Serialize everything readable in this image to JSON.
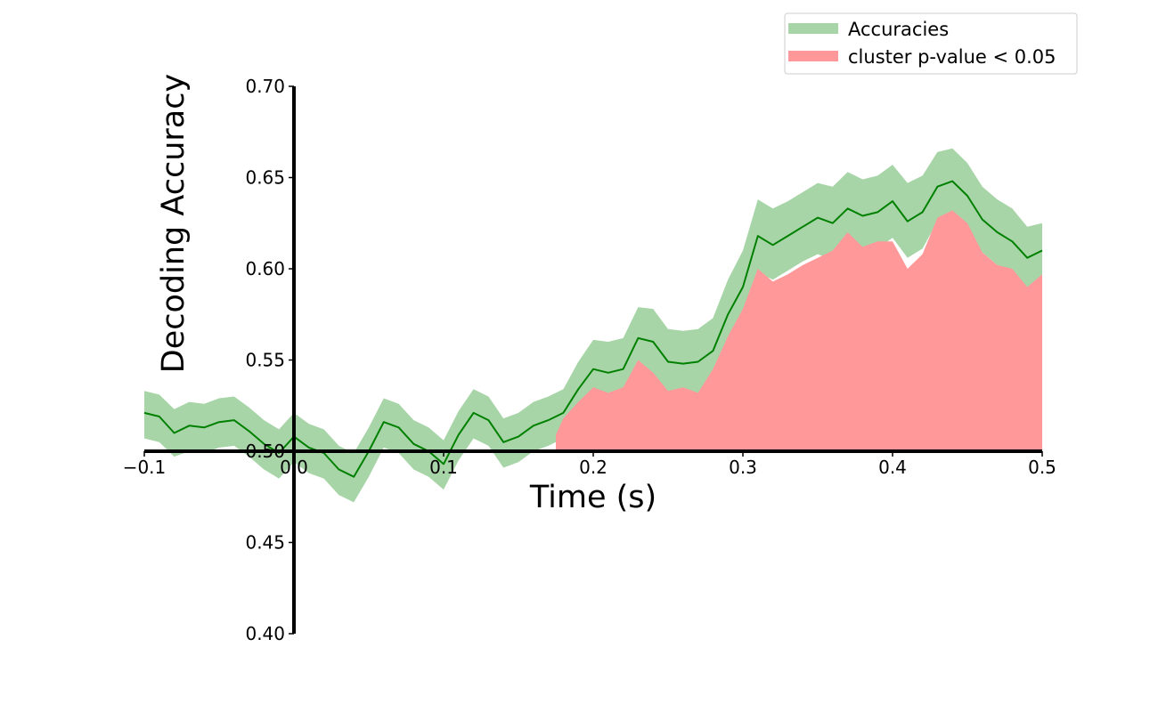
{
  "chart_data": {
    "type": "line",
    "title": "",
    "xlabel": "Time (s)",
    "ylabel": "Decoding Accuracy",
    "xlim": [
      -0.1,
      0.5
    ],
    "ylim": [
      0.4,
      0.7
    ],
    "x_ticks": [
      -0.1,
      0.0,
      0.1,
      0.2,
      0.3,
      0.4,
      0.5
    ],
    "x_tick_labels": [
      "−0.1",
      "0.0",
      "0.1",
      "0.2",
      "0.3",
      "0.4",
      "0.5"
    ],
    "y_ticks": [
      0.4,
      0.45,
      0.5,
      0.55,
      0.6,
      0.65,
      0.7
    ],
    "y_tick_labels": [
      "0.40",
      "0.45",
      "0.50",
      "0.55",
      "0.60",
      "0.65",
      "0.70"
    ],
    "spines_through_origin": true,
    "grid": false,
    "legend_position": "top-right",
    "series": [
      {
        "name": "Accuracies",
        "color": "#008000",
        "band_color": "#a8d5a8",
        "x": [
          -0.1,
          -0.09,
          -0.08,
          -0.07,
          -0.06,
          -0.05,
          -0.04,
          -0.03,
          -0.02,
          -0.01,
          0.0,
          0.01,
          0.02,
          0.03,
          0.04,
          0.05,
          0.06,
          0.07,
          0.08,
          0.09,
          0.1,
          0.11,
          0.12,
          0.13,
          0.14,
          0.15,
          0.16,
          0.17,
          0.18,
          0.19,
          0.2,
          0.21,
          0.22,
          0.23,
          0.24,
          0.25,
          0.26,
          0.27,
          0.28,
          0.29,
          0.3,
          0.31,
          0.32,
          0.33,
          0.34,
          0.35,
          0.36,
          0.37,
          0.38,
          0.39,
          0.4,
          0.41,
          0.42,
          0.43,
          0.44,
          0.45,
          0.46,
          0.47,
          0.48,
          0.49,
          0.5
        ],
        "mean": [
          0.521,
          0.519,
          0.51,
          0.514,
          0.513,
          0.516,
          0.517,
          0.511,
          0.504,
          0.499,
          0.508,
          0.502,
          0.499,
          0.49,
          0.486,
          0.5,
          0.516,
          0.513,
          0.504,
          0.5,
          0.493,
          0.509,
          0.521,
          0.517,
          0.505,
          0.508,
          0.514,
          0.517,
          0.521,
          0.534,
          0.545,
          0.543,
          0.545,
          0.562,
          0.56,
          0.549,
          0.548,
          0.549,
          0.555,
          0.575,
          0.59,
          0.618,
          0.613,
          0.618,
          0.623,
          0.628,
          0.625,
          0.633,
          0.629,
          0.631,
          0.637,
          0.626,
          0.631,
          0.645,
          0.648,
          0.64,
          0.627,
          0.62,
          0.615,
          0.606,
          0.61
        ],
        "lower": [
          0.507,
          0.505,
          0.497,
          0.5,
          0.499,
          0.502,
          0.503,
          0.497,
          0.49,
          0.485,
          0.494,
          0.488,
          0.485,
          0.476,
          0.472,
          0.486,
          0.502,
          0.499,
          0.49,
          0.486,
          0.479,
          0.495,
          0.507,
          0.503,
          0.491,
          0.494,
          0.5,
          0.503,
          0.507,
          0.518,
          0.527,
          0.526,
          0.528,
          0.545,
          0.542,
          0.531,
          0.53,
          0.531,
          0.536,
          0.555,
          0.57,
          0.598,
          0.594,
          0.599,
          0.604,
          0.608,
          0.605,
          0.613,
          0.609,
          0.611,
          0.617,
          0.606,
          0.611,
          0.626,
          0.631,
          0.622,
          0.609,
          0.602,
          0.597,
          0.59,
          0.595
        ],
        "upper": [
          0.533,
          0.531,
          0.523,
          0.527,
          0.526,
          0.529,
          0.53,
          0.524,
          0.517,
          0.512,
          0.521,
          0.515,
          0.512,
          0.503,
          0.499,
          0.513,
          0.529,
          0.526,
          0.517,
          0.513,
          0.506,
          0.522,
          0.534,
          0.53,
          0.518,
          0.521,
          0.527,
          0.53,
          0.534,
          0.549,
          0.561,
          0.56,
          0.562,
          0.579,
          0.578,
          0.567,
          0.566,
          0.567,
          0.573,
          0.594,
          0.61,
          0.638,
          0.633,
          0.637,
          0.642,
          0.647,
          0.645,
          0.653,
          0.649,
          0.651,
          0.657,
          0.647,
          0.651,
          0.664,
          0.666,
          0.658,
          0.645,
          0.638,
          0.633,
          0.623,
          0.625
        ]
      },
      {
        "name": "cluster p-value < 0.05",
        "color": "#ff9999",
        "x": [
          0.175,
          0.18,
          0.19,
          0.2,
          0.21,
          0.22,
          0.23,
          0.24,
          0.25,
          0.26,
          0.27,
          0.28,
          0.29,
          0.3,
          0.31,
          0.32,
          0.33,
          0.34,
          0.35,
          0.36,
          0.37,
          0.38,
          0.39,
          0.4,
          0.41,
          0.42,
          0.43,
          0.44,
          0.45,
          0.46,
          0.47,
          0.48,
          0.49,
          0.5
        ],
        "upper": [
          0.509,
          0.518,
          0.527,
          0.535,
          0.532,
          0.535,
          0.55,
          0.543,
          0.533,
          0.535,
          0.532,
          0.545,
          0.563,
          0.578,
          0.6,
          0.593,
          0.597,
          0.602,
          0.606,
          0.61,
          0.62,
          0.612,
          0.615,
          0.615,
          0.6,
          0.608,
          0.628,
          0.632,
          0.625,
          0.609,
          0.602,
          0.6,
          0.59,
          0.597
        ],
        "baseline": 0.5
      }
    ]
  }
}
